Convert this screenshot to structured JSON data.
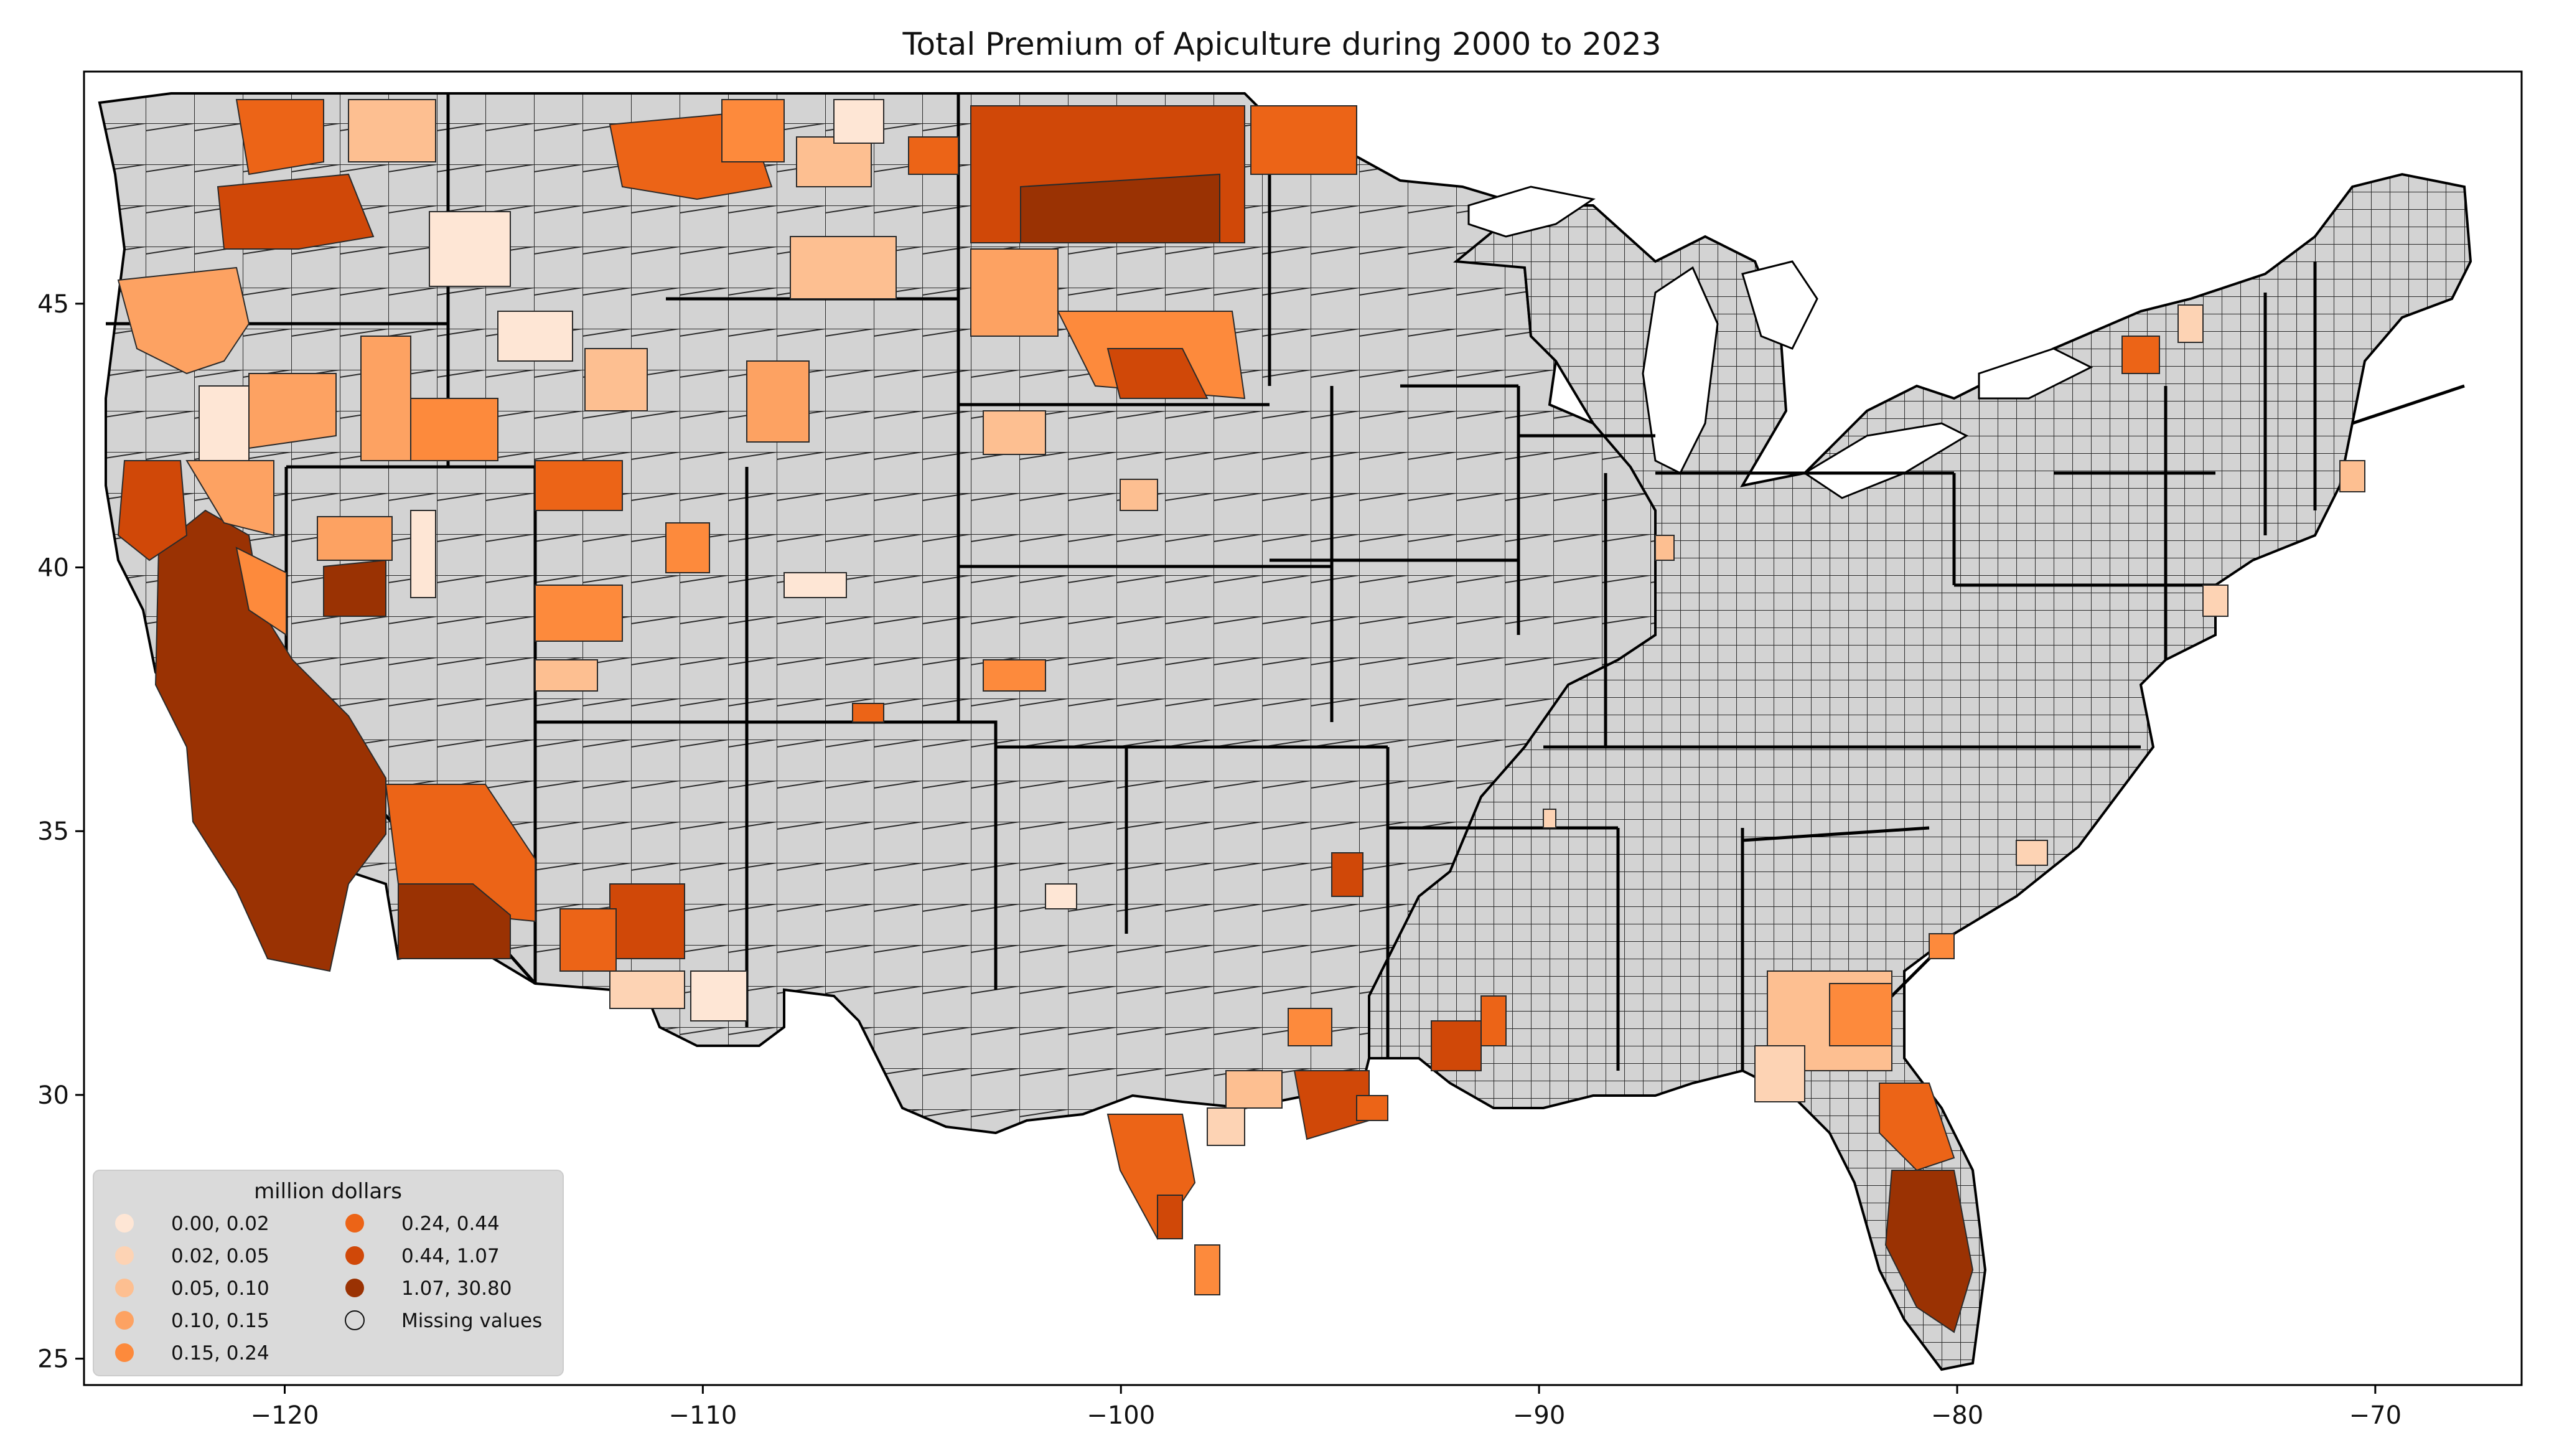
{
  "chart_data": {
    "type": "choropleth-map",
    "title": "Total  Premium of Apiculture during 2000 to 2023",
    "x_ticks": [
      "−120",
      "−110",
      "−100",
      "−90",
      "−80",
      "−70"
    ],
    "x_tick_values": [
      -120,
      -110,
      -100,
      -90,
      -80,
      -70
    ],
    "y_ticks": [
      "25",
      "30",
      "35",
      "40",
      "45"
    ],
    "y_tick_values": [
      25,
      30,
      35,
      40,
      45
    ],
    "xlim": [
      -124.8,
      -66.5
    ],
    "ylim": [
      24.5,
      49.4
    ],
    "grid": false,
    "legend": {
      "title": "million dollars",
      "placement": "lower-left",
      "entries": [
        {
          "label": "0.00,  0.02",
          "color": "#fee6d5"
        },
        {
          "label": "0.02,  0.05",
          "color": "#fdd3b4"
        },
        {
          "label": "0.05,  0.10",
          "color": "#fdbf91"
        },
        {
          "label": "0.10,  0.15",
          "color": "#fda262"
        },
        {
          "label": "0.15,  0.24",
          "color": "#fd8a3c"
        },
        {
          "label": "0.24,  0.44",
          "color": "#ec6417"
        },
        {
          "label": "0.44,  1.07",
          "color": "#d04808"
        },
        {
          "label": "1.07, 30.80",
          "color": "#9a3203"
        },
        {
          "label": "Missing values",
          "color": "none"
        }
      ]
    },
    "missing_color": "#d3d3d3",
    "regions_with_data": [
      "California Central Valley and southern coast (highest class 1.07–30.80)",
      "Southern California desert counties",
      "Southwestern Arizona",
      "Oregon and eastern Washington",
      "Idaho and Utah scattered counties",
      "Montana and North Dakota",
      "South Dakota",
      "Texas Gulf coast and southern Texas",
      "Louisiana (selected parishes)",
      "Southern Georgia",
      "Florida peninsula (highest class)",
      "Northern New York and Massachusetts (selected counties)"
    ]
  }
}
